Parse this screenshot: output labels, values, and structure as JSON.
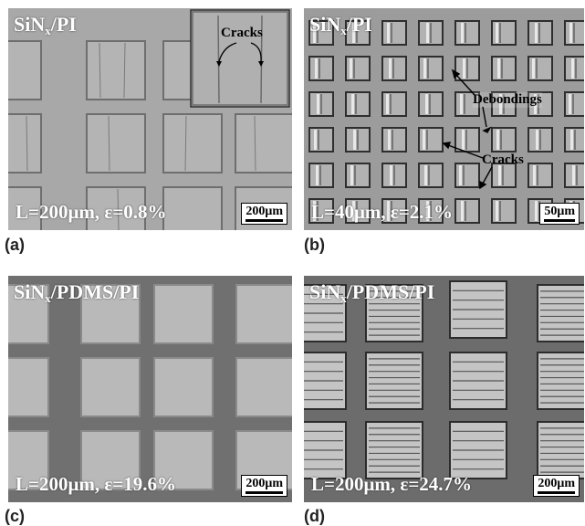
{
  "panels": {
    "a": {
      "label": "(a)",
      "title_main": "SiN",
      "title_sub": "x",
      "title_rest": "/PI",
      "condition": "L=200μm, ε=0.8%",
      "scale": "200μm",
      "annotation": "Cracks"
    },
    "b": {
      "label": "(b)",
      "title_main": "SiN",
      "title_sub": "x",
      "title_rest": "/PI",
      "condition": "L=40μm, ε=2.1%",
      "scale": "50μm",
      "annotation_1": "Debondings",
      "annotation_2": "Cracks"
    },
    "c": {
      "label": "(c)",
      "title_main": "SiN",
      "title_sub": "x",
      "title_rest": "/PDMS/PI",
      "condition": "L=200μm, ε=19.6%",
      "scale": "200μm"
    },
    "d": {
      "label": "(d)",
      "title_main": "SiN",
      "title_sub": "x",
      "title_rest": "/PDMS/PI",
      "condition": "L=200μm, ε=24.7%",
      "scale": "200μm"
    }
  }
}
